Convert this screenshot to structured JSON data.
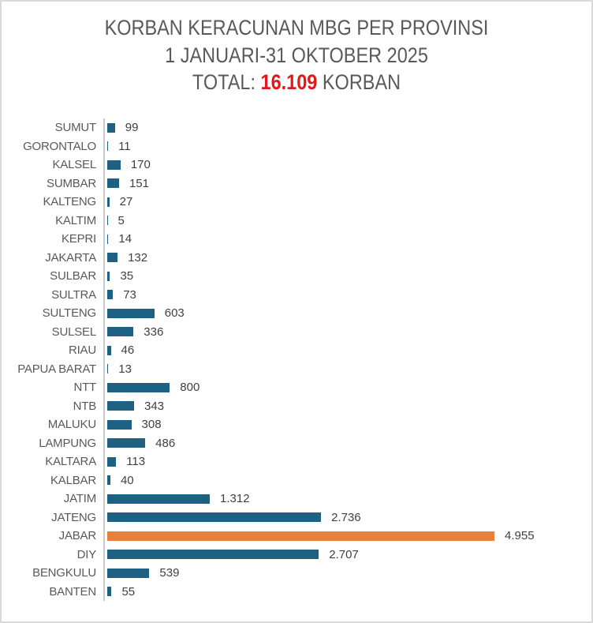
{
  "title": {
    "line1": "KORBAN KERACUNAN MBG PER PROVINSI",
    "line2": "1 JANUARI-31 OKTOBER 2025",
    "line3_prefix": "TOTAL: ",
    "line3_total": "16.109",
    "line3_suffix": " KORBAN"
  },
  "colors": {
    "background": "#FFFFFF",
    "frame_border": "#D9D9D9",
    "title_text": "#595959",
    "total_red": "#E01A1A",
    "category_label": "#595959",
    "value_label": "#3F3F3F",
    "axis_line": "#C9C9C9",
    "bar_default": "#1F6183",
    "bar_highlight": "#E8803D"
  },
  "chart_data": {
    "type": "bar",
    "orientation": "horizontal",
    "title": "KORBAN KERACUNAN MBG PER PROVINSI",
    "subtitle": "1 JANUARI-31 OKTOBER 2025",
    "total_label": "TOTAL: 16.109 KORBAN",
    "total_value": 16109,
    "categories": [
      "SUMUT",
      "GORONTALO",
      "KALSEL",
      "SUMBAR",
      "KALTENG",
      "KALTIM",
      "KEPRI",
      "JAKARTA",
      "SULBAR",
      "SULTRA",
      "SULTENG",
      "SULSEL",
      "RIAU",
      "PAPUA BARAT",
      "NTT",
      "NTB",
      "MALUKU",
      "LAMPUNG",
      "KALTARA",
      "KALBAR",
      "JATIM",
      "JATENG",
      "JABAR",
      "DIY",
      "BENGKULU",
      "BANTEN"
    ],
    "values": [
      99,
      11,
      170,
      151,
      27,
      5,
      14,
      132,
      35,
      73,
      603,
      336,
      46,
      13,
      800,
      343,
      308,
      486,
      113,
      40,
      1312,
      2736,
      4955,
      2707,
      539,
      55
    ],
    "value_labels": [
      "99",
      "11",
      "170",
      "151",
      "27",
      "5",
      "14",
      "132",
      "35",
      "73",
      "603",
      "336",
      "46",
      "13",
      "800",
      "343",
      "308",
      "486",
      "113",
      "40",
      "1.312",
      "2.736",
      "4.955",
      "2.707",
      "539",
      "55"
    ],
    "highlight_category": "JABAR",
    "xlim": [
      0,
      4955
    ],
    "grid": false,
    "legend": false,
    "data_labels": "outside-end"
  }
}
